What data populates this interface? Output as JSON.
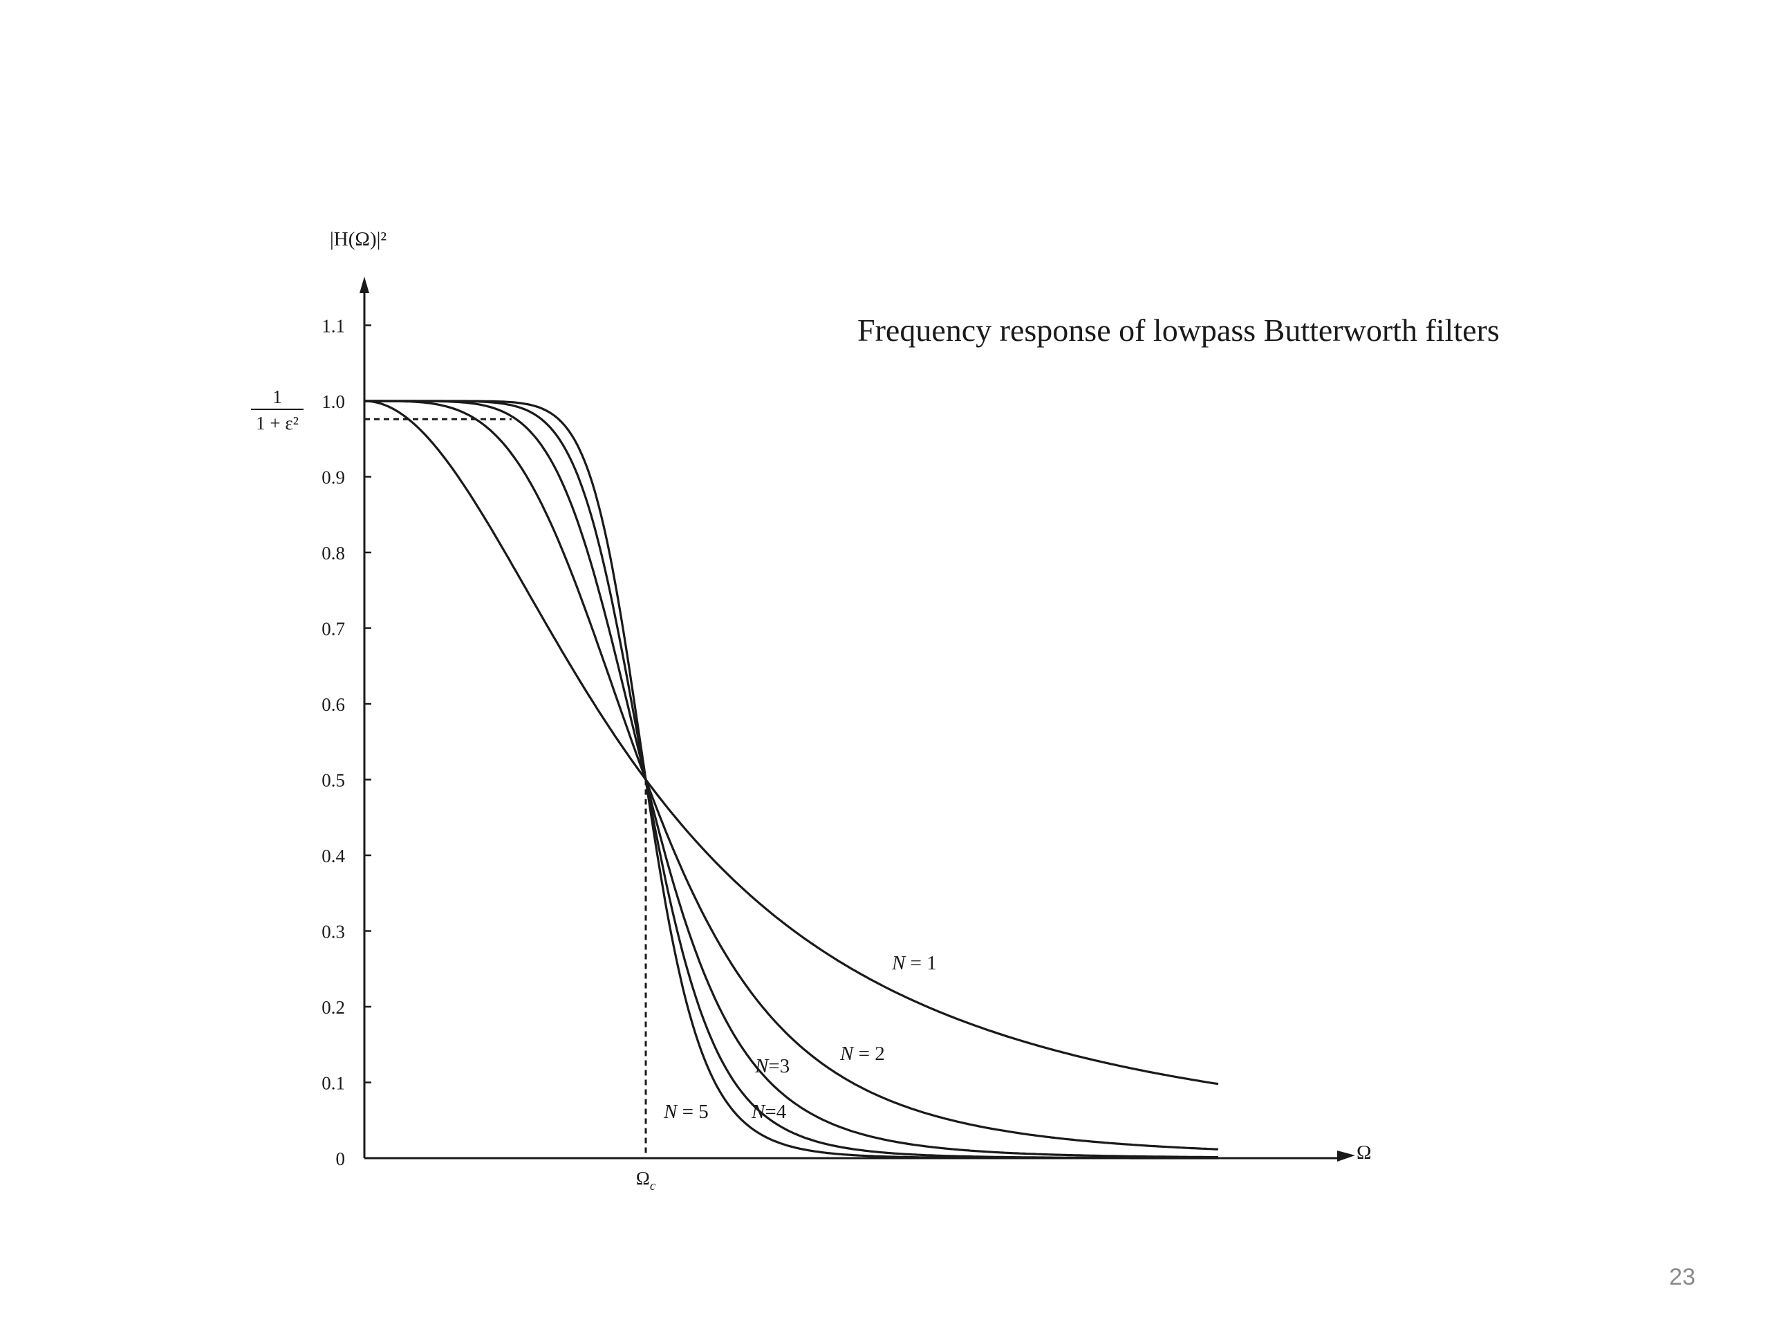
{
  "slide": {
    "page_number": "23"
  },
  "chart_data": {
    "type": "line",
    "title": "Frequency response of lowpass Butterworth filters",
    "ylabel": "|H(Ω)|²",
    "xlabel": "Ω",
    "ylim": [
      0,
      1.1
    ],
    "y_ticks": [
      "0",
      "0.1",
      "0.2",
      "0.3",
      "0.4",
      "0.5",
      "0.6",
      "0.7",
      "0.8",
      "0.9",
      "1.0",
      "1.1"
    ],
    "y_tick_values": [
      0,
      0.1,
      0.2,
      0.3,
      0.4,
      0.5,
      0.6,
      0.7,
      0.8,
      0.9,
      1.0,
      1.1
    ],
    "x_tick_label": "Ωc",
    "x_tick_value": 1,
    "xlim": [
      0,
      3.05
    ],
    "passband_marker": {
      "label_numerator": "1",
      "label_denominator": "1 + ε²",
      "value": 0.976
    },
    "grid": false,
    "series": [
      {
        "name": "N = 1",
        "order": 1,
        "x": [
          0,
          0.25,
          0.5,
          0.75,
          1.0,
          1.25,
          1.5,
          1.75,
          2.0,
          2.5,
          3.0
        ],
        "values": [
          1.0,
          0.941,
          0.8,
          0.64,
          0.5,
          0.39,
          0.308,
          0.246,
          0.2,
          0.138,
          0.1
        ]
      },
      {
        "name": "N = 2",
        "order": 2,
        "x": [
          0,
          0.25,
          0.5,
          0.75,
          1.0,
          1.25,
          1.5,
          1.75,
          2.0,
          2.5,
          3.0
        ],
        "values": [
          1.0,
          0.996,
          0.941,
          0.76,
          0.5,
          0.291,
          0.165,
          0.096,
          0.059,
          0.025,
          0.012
        ]
      },
      {
        "name": "N=3",
        "order": 3,
        "x": [
          0,
          0.25,
          0.5,
          0.75,
          1.0,
          1.25,
          1.5,
          1.75,
          2.0,
          2.5,
          3.0
        ],
        "values": [
          1.0,
          1.0,
          0.985,
          0.849,
          0.5,
          0.208,
          0.081,
          0.033,
          0.015,
          0.004,
          0.001
        ]
      },
      {
        "name": "N=4",
        "order": 4,
        "x": [
          0,
          0.25,
          0.5,
          0.75,
          1.0,
          1.25,
          1.5,
          1.75,
          2.0,
          2.5,
          3.0
        ],
        "values": [
          1.0,
          1.0,
          0.996,
          0.909,
          0.5,
          0.141,
          0.038,
          0.011,
          0.004,
          0.001,
          0.0
        ]
      },
      {
        "name": "N = 5",
        "order": 5,
        "x": [
          0,
          0.25,
          0.5,
          0.75,
          1.0,
          1.25,
          1.5,
          1.75,
          2.0,
          2.5,
          3.0
        ],
        "values": [
          1.0,
          1.0,
          0.999,
          0.947,
          0.5,
          0.095,
          0.017,
          0.004,
          0.001,
          0.0,
          0.0
        ]
      }
    ]
  }
}
